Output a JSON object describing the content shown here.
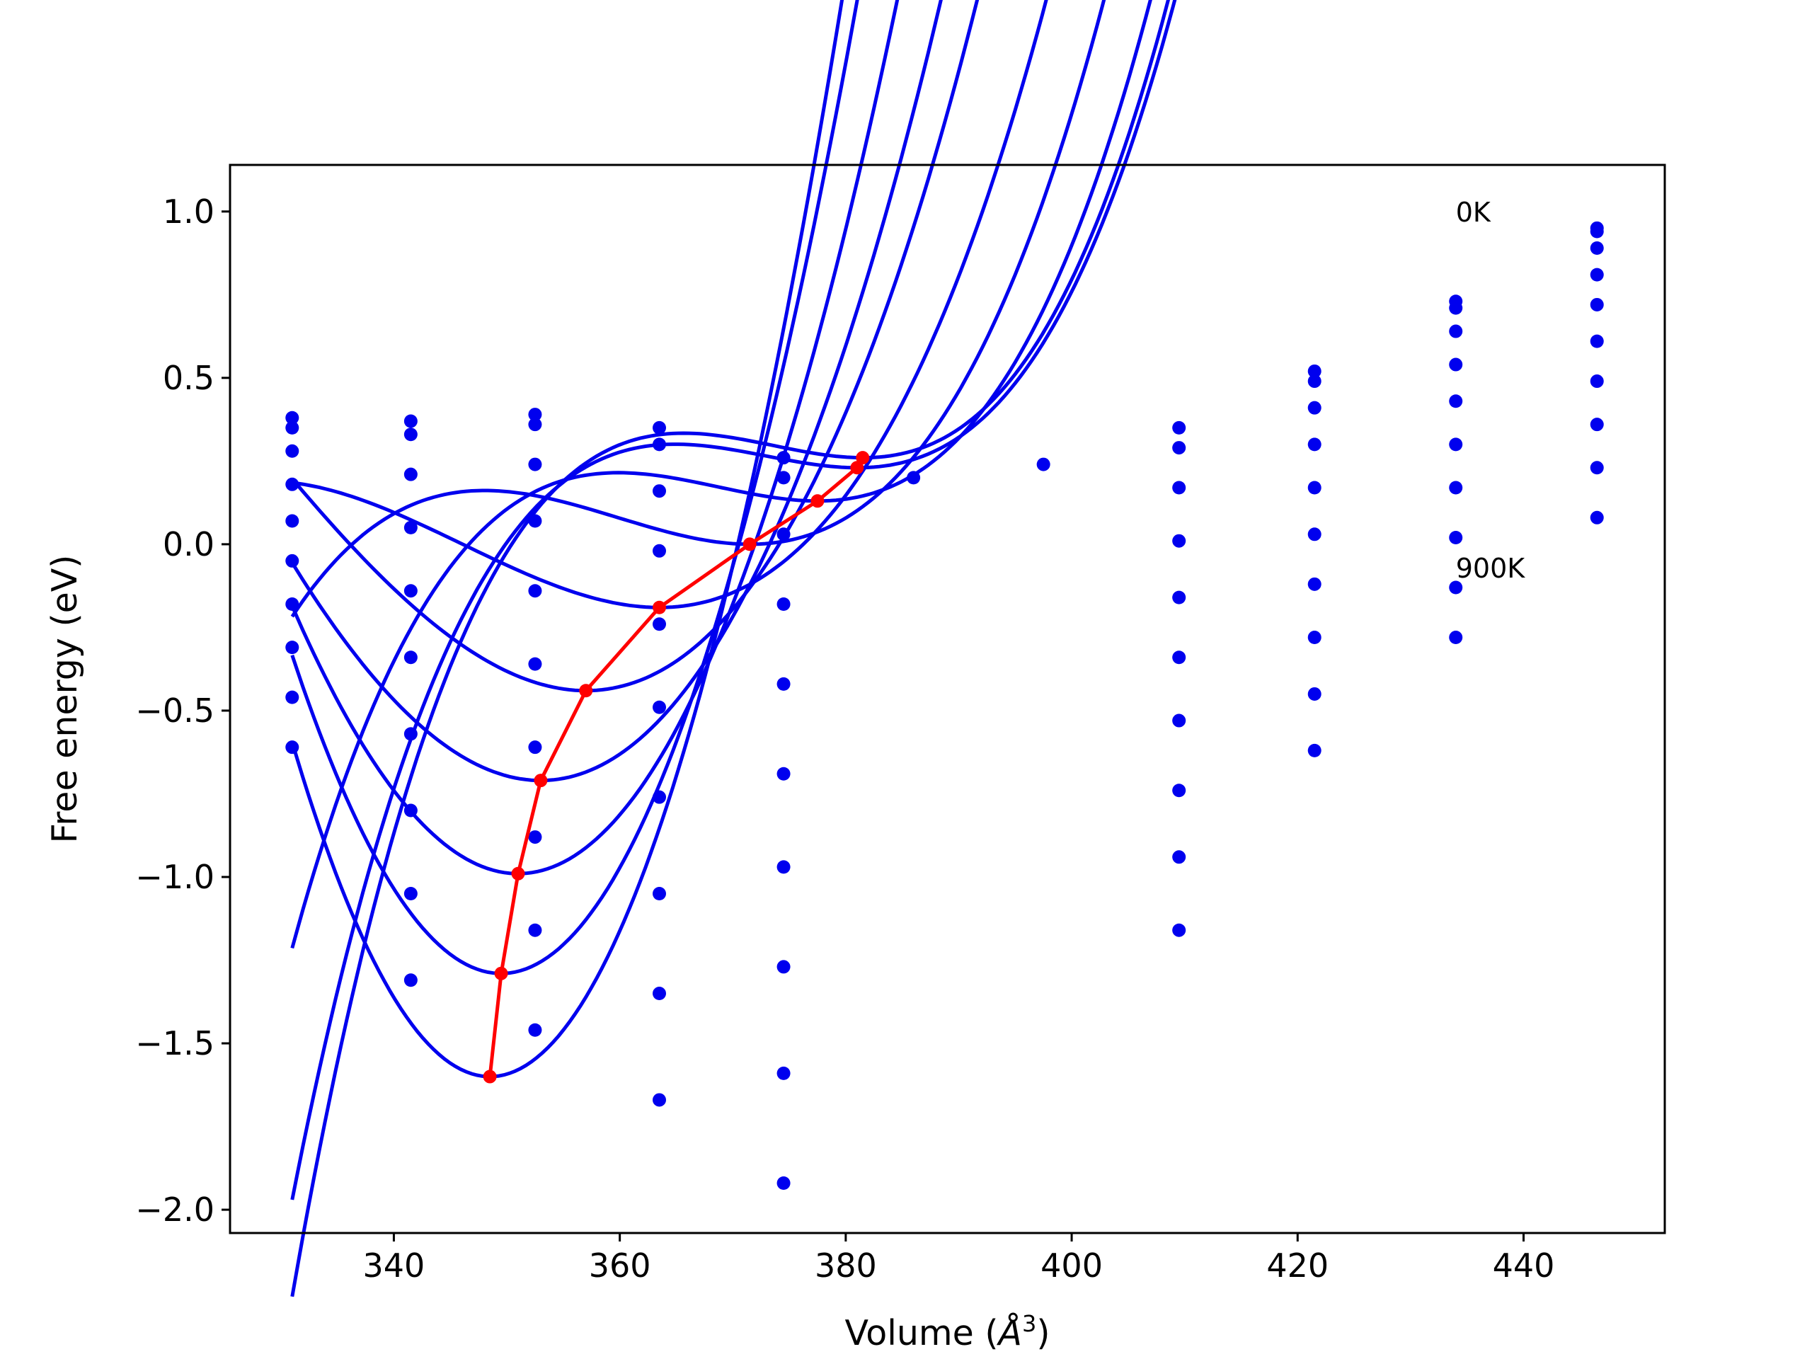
{
  "chart_data": {
    "type": "scatter",
    "xlabel_prefix": "Volume (",
    "xlabel_symbol": "Å",
    "xlabel_power": "3",
    "xlabel_suffix": ")",
    "ylabel": "Free energy (eV)",
    "xlim": [
      325.5,
      452.5
    ],
    "ylim": [
      -2.07,
      1.14
    ],
    "xticks": [
      340,
      360,
      380,
      400,
      420,
      440
    ],
    "yticks": [
      1.0,
      0.5,
      0.0,
      -0.5,
      -1.0,
      -1.5,
      -2.0
    ],
    "ytick_labels": [
      "1.0",
      "0.5",
      "0.0",
      "−0.5",
      "−1.0",
      "−1.5",
      "−2.0"
    ],
    "annotations": [
      {
        "text": "0K",
        "x": 434,
        "y": 1.0
      },
      {
        "text": "900K",
        "x": 434,
        "y": -0.07
      }
    ],
    "colors": {
      "fit": "#0000ee",
      "points": "#0000ee",
      "minima": "#ff0000",
      "axes": "#000000"
    },
    "fit_x_range": [
      331,
      446.5
    ],
    "curves": [
      {
        "V0": 381.5,
        "F0": 0.26,
        "a": 0.00088,
        "b": 3.7e-05
      },
      {
        "V0": 381.0,
        "F0": 0.23,
        "a": 0.00082,
        "b": 3.4e-05
      },
      {
        "V0": 377.5,
        "F0": 0.13,
        "a": 0.00082,
        "b": 3.1e-05
      },
      {
        "V0": 371.5,
        "F0": 0.0,
        "a": 0.00088,
        "b": 2.5e-05
      },
      {
        "V0": 363.5,
        "F0": -0.19,
        "a": 0.00094,
        "b": 1.8e-05
      },
      {
        "V0": 357.0,
        "F0": -0.44,
        "a": 0.00128,
        "b": 1.3e-05
      },
      {
        "V0": 353.0,
        "F0": -0.71,
        "a": 0.00155,
        "b": 9e-06
      },
      {
        "V0": 351.0,
        "F0": -0.99,
        "a": 0.00213,
        "b": 6e-06
      },
      {
        "V0": 349.5,
        "F0": -1.29,
        "a": 0.00285,
        "b": 3e-06
      },
      {
        "V0": 348.5,
        "F0": -1.6,
        "a": 0.0033,
        "b": 1e-06
      }
    ],
    "points": [
      [
        331,
        0.38
      ],
      [
        331,
        0.35
      ],
      [
        331,
        0.28
      ],
      [
        331,
        0.18
      ],
      [
        331,
        0.07
      ],
      [
        331,
        -0.05
      ],
      [
        331,
        -0.18
      ],
      [
        331,
        -0.31
      ],
      [
        331,
        -0.46
      ],
      [
        331,
        -0.61
      ],
      [
        341.5,
        0.37
      ],
      [
        341.5,
        0.33
      ],
      [
        341.5,
        0.21
      ],
      [
        341.5,
        0.05
      ],
      [
        341.5,
        -0.14
      ],
      [
        341.5,
        -0.34
      ],
      [
        341.5,
        -0.57
      ],
      [
        341.5,
        -0.8
      ],
      [
        341.5,
        -1.05
      ],
      [
        341.5,
        -1.31
      ],
      [
        352.5,
        0.39
      ],
      [
        352.5,
        0.36
      ],
      [
        352.5,
        0.24
      ],
      [
        352.5,
        0.07
      ],
      [
        352.5,
        -0.14
      ],
      [
        352.5,
        -0.36
      ],
      [
        352.5,
        -0.61
      ],
      [
        352.5,
        -0.88
      ],
      [
        352.5,
        -1.16
      ],
      [
        352.5,
        -1.46
      ],
      [
        363.5,
        0.35
      ],
      [
        363.5,
        0.3
      ],
      [
        363.5,
        0.16
      ],
      [
        363.5,
        -0.02
      ],
      [
        363.5,
        -0.24
      ],
      [
        363.5,
        -0.49
      ],
      [
        363.5,
        -0.76
      ],
      [
        363.5,
        -1.05
      ],
      [
        363.5,
        -1.35
      ],
      [
        363.5,
        -1.67
      ],
      [
        374.5,
        0.26
      ],
      [
        374.5,
        0.2
      ],
      [
        374.5,
        0.03
      ],
      [
        374.5,
        -0.18
      ],
      [
        374.5,
        -0.42
      ],
      [
        374.5,
        -0.69
      ],
      [
        374.5,
        -0.97
      ],
      [
        374.5,
        -1.27
      ],
      [
        374.5,
        -1.59
      ],
      [
        374.5,
        -1.92
      ],
      [
        386,
        0.2
      ],
      [
        397.5,
        0.24
      ],
      [
        409.5,
        0.35
      ],
      [
        409.5,
        0.29
      ],
      [
        409.5,
        0.17
      ],
      [
        409.5,
        0.01
      ],
      [
        409.5,
        -0.16
      ],
      [
        409.5,
        -0.34
      ],
      [
        409.5,
        -0.53
      ],
      [
        409.5,
        -0.74
      ],
      [
        409.5,
        -0.94
      ],
      [
        409.5,
        -1.16
      ],
      [
        421.5,
        0.52
      ],
      [
        421.5,
        0.49
      ],
      [
        421.5,
        0.41
      ],
      [
        421.5,
        0.3
      ],
      [
        421.5,
        0.17
      ],
      [
        421.5,
        0.03
      ],
      [
        421.5,
        -0.12
      ],
      [
        421.5,
        -0.28
      ],
      [
        421.5,
        -0.45
      ],
      [
        421.5,
        -0.62
      ],
      [
        434,
        0.73
      ],
      [
        434,
        0.71
      ],
      [
        434,
        0.64
      ],
      [
        434,
        0.54
      ],
      [
        434,
        0.43
      ],
      [
        434,
        0.3
      ],
      [
        434,
        0.17
      ],
      [
        434,
        0.02
      ],
      [
        434,
        -0.13
      ],
      [
        434,
        -0.28
      ],
      [
        446.5,
        0.95
      ],
      [
        446.5,
        0.94
      ],
      [
        446.5,
        0.89
      ],
      [
        446.5,
        0.81
      ],
      [
        446.5,
        0.72
      ],
      [
        446.5,
        0.61
      ],
      [
        446.5,
        0.49
      ],
      [
        446.5,
        0.36
      ],
      [
        446.5,
        0.23
      ],
      [
        446.5,
        0.08
      ]
    ],
    "minima": [
      [
        381.5,
        0.26
      ],
      [
        381.0,
        0.23
      ],
      [
        377.5,
        0.13
      ],
      [
        371.5,
        0.0
      ],
      [
        363.5,
        -0.19
      ],
      [
        357.0,
        -0.44
      ],
      [
        353.0,
        -0.71
      ],
      [
        351.0,
        -0.99
      ],
      [
        349.5,
        -1.29
      ],
      [
        348.5,
        -1.6
      ]
    ]
  }
}
